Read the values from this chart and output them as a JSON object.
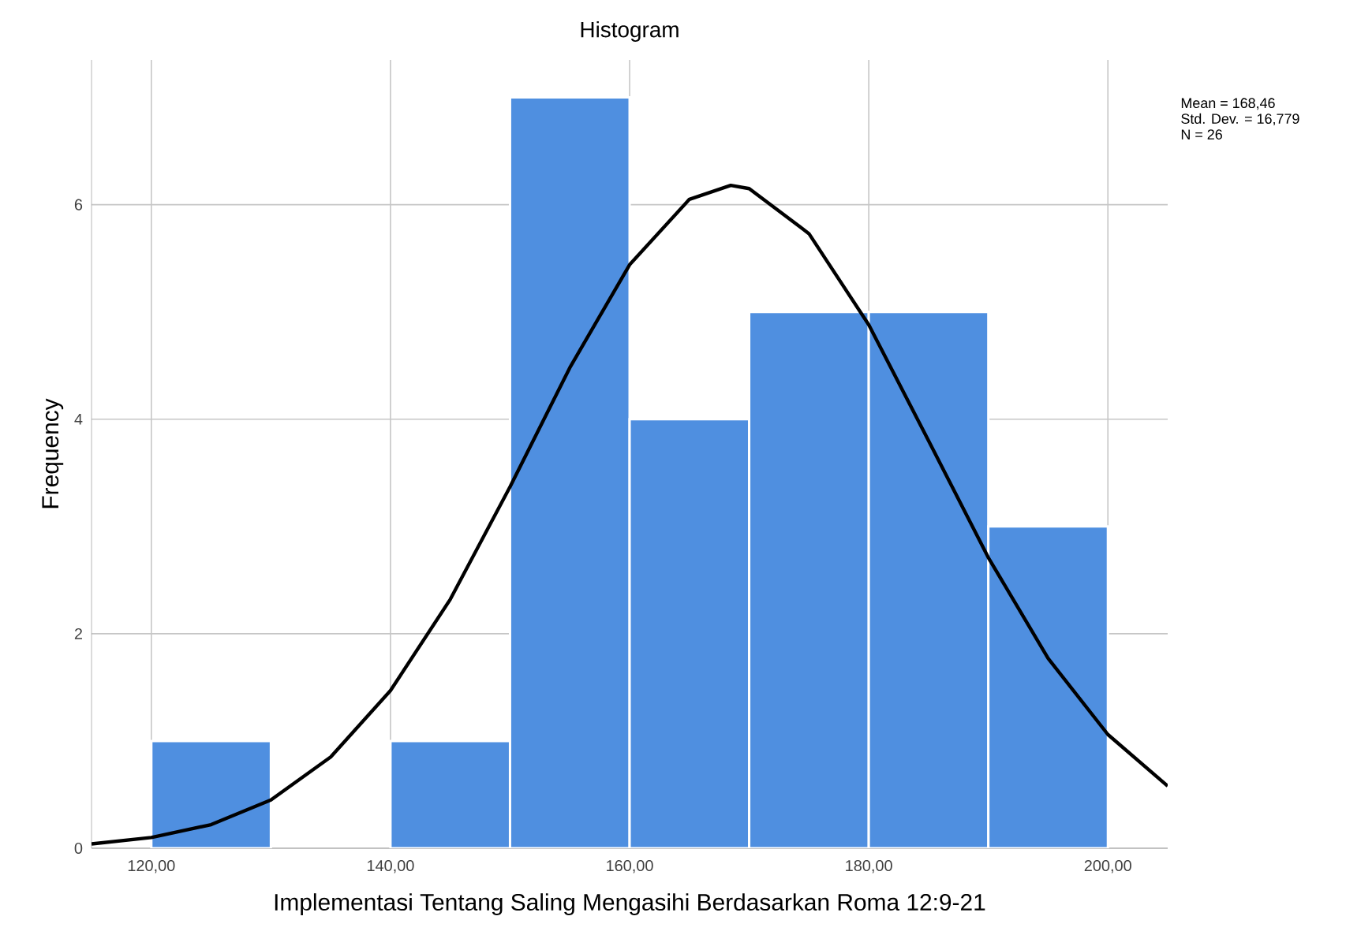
{
  "chart_data": {
    "type": "histogram",
    "title": "Histogram",
    "xlabel": "Implementasi Tentang Saling Mengasihi Berdasarkan Roma 12:9-21",
    "ylabel": "Frequency",
    "bins": [
      120,
      130,
      140,
      150,
      160,
      170,
      180,
      190,
      200
    ],
    "values": [
      1,
      0,
      1,
      7,
      4,
      5,
      5,
      3
    ],
    "color": "#4f8fe0",
    "series": [
      {
        "type": "line",
        "color": "#000000",
        "x": [
          115,
          120,
          125,
          130,
          135,
          140,
          145,
          150,
          155,
          160,
          165,
          168.46,
          170,
          175,
          180,
          185,
          190,
          195,
          200,
          205
        ],
        "values": [
          0.04,
          0.1,
          0.22,
          0.45,
          0.85,
          1.47,
          2.32,
          3.37,
          4.48,
          5.44,
          6.05,
          6.18,
          6.15,
          5.73,
          4.88,
          3.8,
          2.71,
          1.77,
          1.06,
          0.58
        ]
      }
    ],
    "xlim": [
      115,
      205
    ],
    "ylim": [
      0,
      7.35
    ],
    "xticks": [
      {
        "value": 120,
        "label": "120,00"
      },
      {
        "value": 140,
        "label": "140,00"
      },
      {
        "value": 160,
        "label": "160,00"
      },
      {
        "value": 180,
        "label": "180,00"
      },
      {
        "value": 200,
        "label": "200,00"
      }
    ],
    "yticks": [
      0,
      2,
      4,
      6
    ],
    "grid": true,
    "annotations": [
      "Mean = 168,46",
      "Std. Dev. = 16,779",
      "N = 26"
    ]
  }
}
